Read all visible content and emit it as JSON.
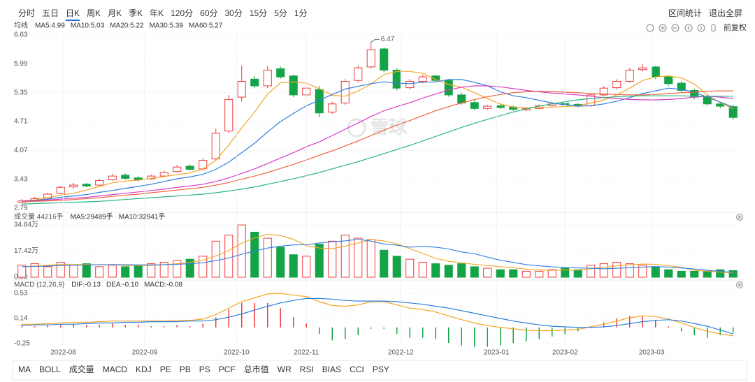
{
  "toolbar": {
    "periods": [
      "分时",
      "五日",
      "日K",
      "周K",
      "月K",
      "季K",
      "年K",
      "120分",
      "60分",
      "30分",
      "15分",
      "5分",
      "1分"
    ],
    "active": "日K",
    "links": [
      "区间统计",
      "退出全屏"
    ],
    "adjust": "前复权"
  },
  "watermark": "雪球",
  "indicator_tabs": {
    "items": [
      "MA",
      "BOLL",
      "成交量",
      "MACD",
      "KDJ",
      "PE",
      "PB",
      "PS",
      "PCF",
      "总市值",
      "WR",
      "RSI",
      "BIAS",
      "CCI",
      "PSY"
    ],
    "active": [
      "MA",
      "成交量",
      "MACD"
    ]
  },
  "chart_data": [
    {
      "type": "candlestick",
      "title": "均线",
      "up_color": "#ee3b3b",
      "down_color": "#14a346",
      "ylim": [
        2.79,
        6.63
      ],
      "yticks": [
        6.63,
        5.99,
        5.35,
        4.71,
        4.07,
        3.43,
        2.79
      ],
      "grid": true,
      "xticks": [
        {
          "value": 3.2,
          "label": "2022-08"
        },
        {
          "value": 9.5,
          "label": "2022-09"
        },
        {
          "value": 16.6,
          "label": "2022-10"
        },
        {
          "value": 22.0,
          "label": "2022-11"
        },
        {
          "value": 29.3,
          "label": "2022-12"
        },
        {
          "value": 36.7,
          "label": "2023-01"
        },
        {
          "value": 42.0,
          "label": "2023-02"
        },
        {
          "value": 48.7,
          "label": "2023-03"
        }
      ],
      "annotations": [
        "6.47"
      ],
      "open": [
        2.92,
        2.96,
        3.02,
        3.12,
        3.26,
        3.32,
        3.3,
        3.42,
        3.52,
        3.46,
        3.44,
        3.5,
        3.6,
        3.72,
        3.66,
        3.88,
        4.5,
        5.25,
        5.65,
        5.5,
        5.88,
        5.72,
        5.3,
        5.42,
        4.92,
        5.12,
        5.62,
        5.92,
        6.32,
        5.85,
        5.46,
        5.6,
        5.72,
        5.62,
        5.3,
        5.13,
        5.0,
        5.06,
        5.03,
        4.97,
        5.0,
        5.06,
        5.11,
        5.09,
        5.06,
        5.3,
        5.46,
        5.6,
        5.86,
        5.92,
        5.7,
        5.56,
        5.4,
        5.26,
        5.1,
        5.04
      ],
      "high": [
        2.99,
        3.04,
        3.13,
        3.28,
        3.35,
        3.35,
        3.44,
        3.55,
        3.56,
        3.5,
        3.53,
        3.62,
        3.75,
        3.76,
        3.9,
        4.55,
        5.3,
        5.95,
        5.72,
        5.95,
        5.93,
        5.75,
        5.5,
        5.5,
        5.15,
        5.65,
        5.95,
        6.47,
        6.35,
        5.9,
        5.65,
        5.75,
        5.75,
        5.65,
        5.35,
        5.18,
        5.08,
        5.1,
        5.06,
        5.03,
        5.09,
        5.14,
        5.14,
        5.12,
        5.34,
        5.5,
        5.65,
        5.9,
        5.98,
        5.95,
        5.74,
        5.6,
        5.44,
        5.3,
        5.14,
        5.08
      ],
      "low": [
        2.9,
        2.93,
        2.99,
        3.1,
        3.22,
        3.25,
        3.28,
        3.4,
        3.42,
        3.38,
        3.42,
        3.48,
        3.58,
        3.62,
        3.62,
        3.84,
        4.45,
        5.15,
        5.45,
        5.45,
        5.66,
        5.25,
        5.25,
        4.8,
        4.88,
        5.08,
        5.58,
        5.88,
        5.8,
        5.4,
        5.42,
        5.56,
        5.58,
        5.26,
        5.08,
        4.96,
        4.97,
        4.99,
        4.94,
        4.94,
        4.98,
        5.03,
        5.05,
        5.02,
        5.03,
        5.26,
        5.42,
        5.57,
        5.82,
        5.65,
        5.5,
        5.36,
        5.2,
        5.06,
        5.0,
        4.75
      ],
      "close": [
        2.95,
        3.0,
        3.1,
        3.25,
        3.3,
        3.28,
        3.4,
        3.5,
        3.45,
        3.42,
        3.5,
        3.58,
        3.7,
        3.65,
        3.85,
        4.45,
        5.2,
        5.6,
        5.5,
        5.85,
        5.7,
        5.3,
        5.45,
        4.9,
        5.1,
        5.6,
        5.9,
        6.3,
        5.85,
        5.45,
        5.6,
        5.7,
        5.62,
        5.3,
        5.12,
        5.0,
        5.05,
        5.02,
        4.98,
        5.0,
        5.06,
        5.1,
        5.08,
        5.05,
        5.3,
        5.45,
        5.6,
        5.85,
        5.9,
        5.7,
        5.55,
        5.4,
        5.25,
        5.1,
        5.05,
        4.8
      ],
      "series": [
        {
          "name": "MA5:4.99",
          "color": "#f5a623",
          "values": [
            2.95,
            2.97,
            3.02,
            3.08,
            3.12,
            3.19,
            3.27,
            3.35,
            3.39,
            3.41,
            3.45,
            3.49,
            3.53,
            3.57,
            3.66,
            3.85,
            4.19,
            4.57,
            4.92,
            5.32,
            5.57,
            5.59,
            5.56,
            5.44,
            5.29,
            5.27,
            5.39,
            5.54,
            5.75,
            5.82,
            5.82,
            5.78,
            5.64,
            5.53,
            5.47,
            5.35,
            5.22,
            5.1,
            5.03,
            5.01,
            5.02,
            5.03,
            5.04,
            5.06,
            5.12,
            5.19,
            5.3,
            5.45,
            5.62,
            5.7,
            5.72,
            5.68,
            5.54,
            5.3,
            5.13,
            4.99
          ]
        },
        {
          "name": "MA10:5.03",
          "color": "#2f7fe0",
          "values": [
            2.95,
            2.96,
            2.99,
            3.03,
            3.06,
            3.09,
            3.14,
            3.18,
            3.23,
            3.27,
            3.32,
            3.38,
            3.44,
            3.48,
            3.54,
            3.65,
            3.81,
            4.02,
            4.23,
            4.48,
            4.71,
            4.89,
            5.06,
            5.18,
            5.31,
            5.43,
            5.49,
            5.55,
            5.59,
            5.56,
            5.55,
            5.58,
            5.59,
            5.64,
            5.64,
            5.58,
            5.5,
            5.37,
            5.28,
            5.24,
            5.18,
            5.12,
            5.08,
            5.05,
            5.06,
            5.1,
            5.16,
            5.24,
            5.33,
            5.39,
            5.45,
            5.42,
            5.36,
            5.25,
            5.14,
            5.03
          ]
        },
        {
          "name": "MA20:5.22",
          "color": "#d63cc8",
          "values": [
            2.95,
            2.95,
            2.97,
            2.99,
            3.01,
            3.03,
            3.06,
            3.09,
            3.12,
            3.15,
            3.18,
            3.21,
            3.25,
            3.28,
            3.32,
            3.38,
            3.46,
            3.56,
            3.66,
            3.78,
            3.9,
            4.02,
            4.15,
            4.26,
            4.4,
            4.54,
            4.68,
            4.82,
            4.95,
            5.04,
            5.13,
            5.23,
            5.32,
            5.41,
            5.47,
            5.5,
            5.5,
            5.48,
            5.44,
            5.4,
            5.37,
            5.34,
            5.32,
            5.3,
            5.27,
            5.24,
            5.22,
            5.2,
            5.19,
            5.19,
            5.2,
            5.22,
            5.25,
            5.27,
            5.25,
            5.22
          ]
        },
        {
          "name": "MA30:5.39",
          "color": "#f0643c",
          "values": [
            2.93,
            2.94,
            2.95,
            2.96,
            2.98,
            3.0,
            3.02,
            3.05,
            3.08,
            3.1,
            3.13,
            3.16,
            3.19,
            3.22,
            3.25,
            3.3,
            3.36,
            3.43,
            3.5,
            3.58,
            3.67,
            3.76,
            3.86,
            3.96,
            4.06,
            4.17,
            4.28,
            4.4,
            4.52,
            4.63,
            4.73,
            4.84,
            4.95,
            5.04,
            5.12,
            5.2,
            5.26,
            5.31,
            5.35,
            5.37,
            5.38,
            5.37,
            5.36,
            5.35,
            5.33,
            5.32,
            5.31,
            5.3,
            5.3,
            5.31,
            5.33,
            5.35,
            5.36,
            5.38,
            5.39,
            5.39
          ]
        },
        {
          "name": "MA60:5.27",
          "color": "#2bb58a",
          "values": [
            2.88,
            2.89,
            2.9,
            2.91,
            2.92,
            2.93,
            2.94,
            2.96,
            2.98,
            3.0,
            3.02,
            3.04,
            3.06,
            3.08,
            3.1,
            3.13,
            3.17,
            3.21,
            3.26,
            3.32,
            3.38,
            3.44,
            3.51,
            3.58,
            3.66,
            3.74,
            3.82,
            3.91,
            4.0,
            4.09,
            4.18,
            4.28,
            4.38,
            4.48,
            4.58,
            4.67,
            4.76,
            4.84,
            4.92,
            4.99,
            5.05,
            5.1,
            5.15,
            5.19,
            5.22,
            5.24,
            5.26,
            5.27,
            5.28,
            5.28,
            5.28,
            5.28,
            5.27,
            5.27,
            5.27,
            5.27
          ]
        }
      ]
    },
    {
      "type": "bar",
      "title": "成交量 44216手",
      "ylim": [
        0,
        34.84
      ],
      "yticks": [
        {
          "value": 34.84,
          "label": "34.84万"
        },
        {
          "value": 17.42,
          "label": "17.42万"
        },
        {
          "value": 0,
          "label": "0.00"
        }
      ],
      "values": [
        8,
        9,
        7,
        10,
        8,
        9,
        7,
        8,
        7,
        8,
        9,
        10,
        11,
        12,
        14,
        24,
        28,
        34.8,
        30,
        26,
        20,
        15,
        14,
        22,
        24,
        28,
        26,
        25,
        18,
        14,
        12,
        10,
        9,
        8,
        9,
        7,
        6,
        5,
        5,
        4,
        4,
        5,
        6,
        5,
        8,
        9,
        10,
        9,
        8,
        7,
        5,
        4,
        4,
        4,
        5,
        4.42
      ],
      "series": [
        {
          "name": "MA5:29489手",
          "color": "#f5a623",
          "values": [
            7,
            7.5,
            8,
            8.5,
            8.4,
            8.6,
            8.2,
            8.4,
            7.8,
            7.8,
            7.8,
            8.4,
            9,
            10,
            11.2,
            14.2,
            17.8,
            22.6,
            26.2,
            28.6,
            27.8,
            25.2,
            21,
            19.4,
            19,
            20.6,
            22.8,
            25,
            24.2,
            22.2,
            19,
            15.8,
            12.6,
            10.6,
            9.6,
            8.6,
            7.8,
            7,
            6.4,
            5.4,
            4.8,
            4.6,
            4.8,
            4.8,
            5.6,
            6.6,
            7.6,
            8.2,
            8.8,
            8.6,
            7.8,
            6.6,
            4.6,
            4,
            3.4,
            2.95
          ]
        },
        {
          "name": "MA10:32941手",
          "color": "#2f7fe0",
          "values": [
            7,
            7.2,
            7.5,
            7.8,
            8,
            8.2,
            8.3,
            8.4,
            8.3,
            8.2,
            8.2,
            8.3,
            8.6,
            9,
            9.6,
            11.1,
            12.8,
            15.3,
            17.5,
            19.4,
            20.7,
            21.5,
            21.6,
            22.8,
            23.6,
            24.2,
            25.3,
            24,
            22.1,
            21.3,
            20,
            20.5,
            20,
            18.8,
            16.8,
            15.6,
            13.4,
            11.3,
            9.9,
            8.4,
            7.6,
            6.9,
            6.5,
            6.2,
            6,
            5.6,
            6,
            6.3,
            6.8,
            7.1,
            6.8,
            6.2,
            5.5,
            4.6,
            3.9,
            3.29
          ]
        }
      ]
    },
    {
      "type": "line",
      "title": "MACD (12,26,9)",
      "ylim": [
        -0.25,
        0.53
      ],
      "yticks": [
        0.53,
        0.14,
        -0.25
      ],
      "series": [
        {
          "name": "DIF:-0.13",
          "color": "#f5a623",
          "values": [
            0.05,
            0.05,
            0.06,
            0.07,
            0.08,
            0.08,
            0.09,
            0.1,
            0.1,
            0.1,
            0.1,
            0.1,
            0.11,
            0.11,
            0.13,
            0.2,
            0.3,
            0.4,
            0.46,
            0.52,
            0.53,
            0.5,
            0.48,
            0.4,
            0.34,
            0.33,
            0.35,
            0.4,
            0.4,
            0.35,
            0.3,
            0.28,
            0.24,
            0.18,
            0.12,
            0.07,
            0.03,
            0,
            -0.02,
            -0.04,
            -0.05,
            -0.05,
            -0.04,
            -0.03,
            0.01,
            0.05,
            0.1,
            0.15,
            0.18,
            0.17,
            0.13,
            0.07,
            0,
            -0.06,
            -0.1,
            -0.13
          ]
        },
        {
          "name": "DEA:-0.10",
          "color": "#2f7fe0",
          "values": [
            0.03,
            0.04,
            0.04,
            0.05,
            0.05,
            0.06,
            0.07,
            0.07,
            0.08,
            0.08,
            0.09,
            0.09,
            0.09,
            0.1,
            0.1,
            0.12,
            0.16,
            0.21,
            0.27,
            0.33,
            0.38,
            0.42,
            0.45,
            0.45,
            0.44,
            0.42,
            0.41,
            0.41,
            0.41,
            0.4,
            0.38,
            0.36,
            0.33,
            0.3,
            0.26,
            0.22,
            0.18,
            0.14,
            0.1,
            0.07,
            0.04,
            0.02,
            0.01,
            0,
            0,
            0.01,
            0.03,
            0.06,
            0.09,
            0.11,
            0.12,
            0.1,
            0.06,
            0.02,
            -0.04,
            -0.1
          ]
        }
      ],
      "histogram": {
        "name": "MACD:-0.08",
        "up_color": "#ee3b3b",
        "down_color": "#14a346",
        "values": [
          0.04,
          0.02,
          0.04,
          0.04,
          0.06,
          0.04,
          0.04,
          0.06,
          0.04,
          0.04,
          0.02,
          0.02,
          0.04,
          0.02,
          0.06,
          0.16,
          0.28,
          0.38,
          0.38,
          0.38,
          0.3,
          0.16,
          0.06,
          -0.1,
          -0.2,
          -0.18,
          -0.12,
          -0.02,
          -0.02,
          -0.1,
          -0.16,
          -0.16,
          -0.18,
          -0.24,
          -0.28,
          -0.3,
          -0.3,
          -0.28,
          -0.24,
          -0.22,
          -0.18,
          -0.14,
          -0.1,
          -0.06,
          0.02,
          0.08,
          0.14,
          0.18,
          0.18,
          0.12,
          0.02,
          -0.06,
          -0.12,
          -0.16,
          -0.12,
          -0.08
        ]
      }
    }
  ]
}
